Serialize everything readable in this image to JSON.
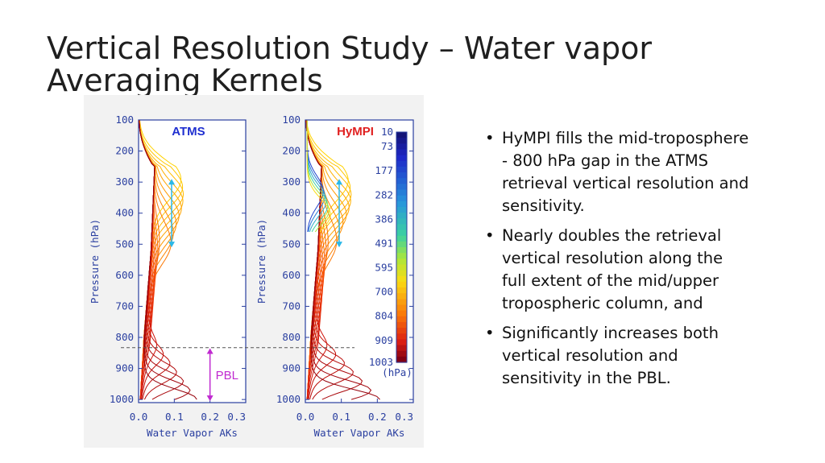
{
  "slide": {
    "title": "Vertical Resolution Study – Water vapor Averaging Kernels"
  },
  "bullets": [
    "HyMPI fills the mid-troposphere - 800 hPa gap in the ATMS retrieval vertical resolution and sensitivity.",
    "Nearly doubles the retrieval vertical resolution along the full extent of the mid/upper tropospheric column, and",
    "Significantly increases both vertical resolution and sensitivity in the PBL."
  ],
  "bullet_symbol": "•",
  "chart_data": [
    {
      "type": "line",
      "panel_label": "ATMS",
      "panel_label_color": "#1f2fd0",
      "xlabel": "Water Vapor AKs",
      "ylabel": "Pressure (hPa)",
      "xlim": [
        0.0,
        0.3
      ],
      "ylim": [
        1010,
        100
      ],
      "x_ticks": [
        "0.0",
        "0.1",
        "0.2",
        "0.3"
      ],
      "y_ticks": [
        "100",
        "200",
        "300",
        "400",
        "500",
        "600",
        "700",
        "800",
        "900",
        "1000"
      ],
      "annotations": {
        "pbl_label": "PBL",
        "pbl_label_color": "#c02ad0",
        "pbl_arrow_range_hPa": [
          835,
          1005
        ],
        "mid_arrow_range_hPa": [
          290,
          510
        ],
        "dashed_line_hPa": 833
      },
      "series_description": "AK profiles for each retrieval level, colored by level pressure",
      "peaks": {
        "upper_peak": 0.08,
        "pbl_peak": 0.16
      }
    },
    {
      "type": "line",
      "panel_label": "HyMPI",
      "panel_label_color": "#e02020",
      "xlabel": "Water Vapor AKs",
      "ylabel": "Pressure (hPa)",
      "xlim": [
        0.0,
        0.3
      ],
      "ylim": [
        1010,
        100
      ],
      "x_ticks": [
        "0.0",
        "0.1",
        "0.2",
        "0.3"
      ],
      "y_ticks": [
        "100",
        "200",
        "300",
        "400",
        "500",
        "600",
        "700",
        "800",
        "900",
        "1000"
      ],
      "annotations": {
        "mid_arrow_range_hPa": [
          290,
          510
        ]
      },
      "colorbar": {
        "unit": "(hPa)",
        "labels": [
          "10",
          "73",
          "177",
          "282",
          "386",
          "491",
          "595",
          "700",
          "804",
          "909",
          "1003"
        ]
      },
      "peaks": {
        "upper_peak": 0.07,
        "pbl_peak": 0.2
      }
    }
  ]
}
